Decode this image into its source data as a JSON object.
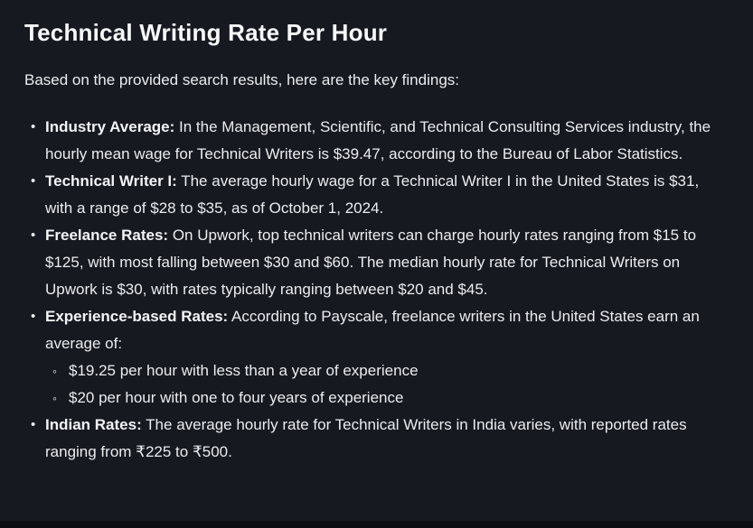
{
  "colors": {
    "card_background": "#171921",
    "page_background": "#0b0c0f",
    "body_text": "#ebecee",
    "heading_text": "#f7f8f9"
  },
  "page": {
    "title": "Technical Writing Rate Per Hour",
    "intro": "Based on the provided search results, here are the key findings:"
  },
  "findings": [
    {
      "label": "Industry Average:",
      "text": "In the Management, Scientific, and Technical Consulting Services industry, the hourly mean wage for Technical Writers is $39.47, according to the Bureau of Labor Statistics."
    },
    {
      "label": "Technical Writer I:",
      "text": "The average hourly wage for a Technical Writer I in the United States is $31, with a range of $28 to $35, as of October 1, 2024."
    },
    {
      "label": "Freelance Rates:",
      "text": "On Upwork, top technical writers can charge hourly rates ranging from $15 to $125, with most falling between $30 and $60. The median hourly rate for Technical Writers on Upwork is $30, with rates typically ranging between $20 and $45."
    },
    {
      "label": "Experience-based Rates:",
      "text": "According to Payscale, freelance writers in the United States earn an average of:",
      "sub_items": [
        "$19.25 per hour with less than a year of experience",
        "$20 per hour with one to four years of experience"
      ]
    },
    {
      "label": "Indian Rates:",
      "text": "The average hourly rate for Technical Writers in India varies, with reported rates ranging from ₹225 to ₹500."
    }
  ]
}
